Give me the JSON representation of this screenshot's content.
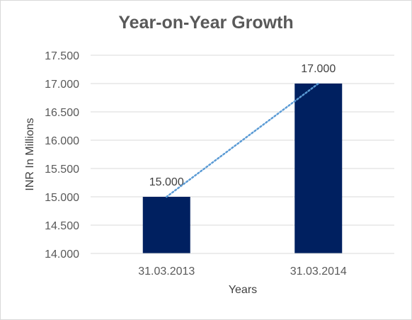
{
  "chart_data": {
    "type": "bar",
    "title": "Year-on-Year Growth",
    "xlabel": "Years",
    "ylabel": "INR In Millions",
    "categories": [
      "31.03.2013",
      "31.03.2014"
    ],
    "values": [
      15000,
      17000
    ],
    "data_labels": [
      "15.000",
      "17.000"
    ],
    "ylim": [
      14000,
      17500
    ],
    "yticks": [
      14000,
      14500,
      15000,
      15500,
      16000,
      16500,
      17000,
      17500
    ],
    "ytick_labels": [
      "14.000",
      "14.500",
      "15.000",
      "15.500",
      "16.000",
      "16.500",
      "17.000",
      "17.500"
    ],
    "grid": true,
    "trendline": "linear",
    "bar_color": "#002060",
    "trendline_color": "#5b9bd5",
    "grid_color": "#d9d9d9"
  }
}
